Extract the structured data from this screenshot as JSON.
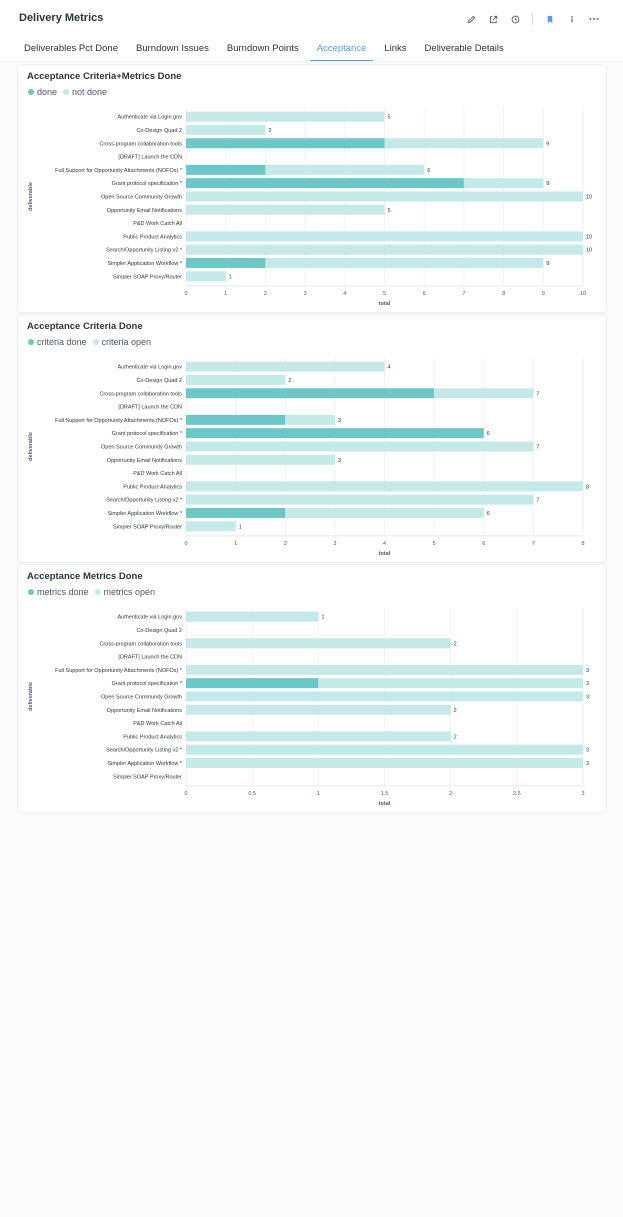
{
  "header": {
    "title": "Delivery Metrics"
  },
  "tabs": [
    {
      "label": "Deliverables Pct Done",
      "active": false
    },
    {
      "label": "Burndown Issues",
      "active": false
    },
    {
      "label": "Burndown Points",
      "active": false
    },
    {
      "label": "Acceptance",
      "active": true
    },
    {
      "label": "Links",
      "active": false
    },
    {
      "label": "Deliverable Details",
      "active": false
    }
  ],
  "colors": {
    "accent": "#509ee3",
    "done": "#6cc7c6",
    "open": "#c5e9e9",
    "grid": "#eceff2"
  },
  "icons": [
    "pencil-icon",
    "share-icon",
    "clock-icon",
    "bookmark-icon",
    "info-icon",
    "more-icon"
  ],
  "cards": [
    {
      "title": "Acceptance Criteria+Metrics Done",
      "legend": [
        "done",
        "not done"
      ]
    },
    {
      "title": "Acceptance Criteria Done",
      "legend": [
        "criteria done",
        "criteria open"
      ]
    },
    {
      "title": "Acceptance Metrics Done",
      "legend": [
        "metrics done",
        "metrics open"
      ]
    }
  ],
  "chart_data": [
    {
      "type": "bar",
      "orientation": "horizontal",
      "stacked": true,
      "title": "Acceptance Criteria+Metrics Done",
      "xlabel": "total",
      "ylabel": "deliverable",
      "xlim": [
        0,
        10
      ],
      "xticks": [
        "0",
        "1",
        "2",
        "3",
        "4",
        "5",
        "6",
        "7",
        "8",
        "9",
        "10"
      ],
      "categories": [
        "Authenticate via Login.gov",
        "Co-Design Quad 2",
        "Cross-program collaboration tools",
        "[DRAFT] Launch the CDN",
        "Full Support for Opportunity Attachments (NOFOs) *",
        "Grant protocol specification *",
        "Open Source Community Growth",
        "Opportunity Email Notifications",
        "P&D Work Catch All",
        "Public Product Analytics",
        "Search/Opportunity Listing v2 *",
        "Simpler Application Workflow *",
        "Simpler SOAP Proxy/Router"
      ],
      "series": [
        {
          "name": "done",
          "values": [
            0,
            0,
            5,
            0,
            2,
            7,
            0,
            0,
            0,
            0,
            0,
            2,
            0
          ]
        },
        {
          "name": "not done",
          "values": [
            5,
            2,
            4,
            0,
            4,
            2,
            10,
            5,
            0,
            10,
            10,
            7,
            1
          ]
        }
      ],
      "totals": [
        "5",
        "2",
        "9",
        "",
        "6",
        "9",
        "10",
        "5",
        "",
        "10",
        "10",
        "9",
        "1"
      ],
      "grid": true,
      "legend_position": "top-left"
    },
    {
      "type": "bar",
      "orientation": "horizontal",
      "stacked": true,
      "title": "Acceptance Criteria Done",
      "xlabel": "total",
      "ylabel": "deliverable",
      "xlim": [
        0,
        8
      ],
      "xticks": [
        "0",
        "1",
        "2",
        "3",
        "4",
        "5",
        "6",
        "7",
        "8"
      ],
      "categories": [
        "Authenticate via Login.gov",
        "Co-Design Quad 2",
        "Cross-program collaboration tools",
        "[DRAFT] Launch the CDN",
        "Full Support for Opportunity Attachments (NOFOs) *",
        "Grant protocol specification *",
        "Open Source Community Growth",
        "Opportunity Email Notifications",
        "P&D Work Catch All",
        "Public Product Analytics",
        "Search/Opportunity Listing v2 *",
        "Simpler Application Workflow *",
        "Simpler SOAP Proxy/Router"
      ],
      "series": [
        {
          "name": "criteria done",
          "values": [
            0,
            0,
            5,
            0,
            2,
            6,
            0,
            0,
            0,
            0,
            0,
            2,
            0
          ]
        },
        {
          "name": "criteria open",
          "values": [
            4,
            2,
            2,
            0,
            1,
            0,
            7,
            3,
            0,
            8,
            7,
            4,
            1
          ]
        }
      ],
      "totals": [
        "4",
        "2",
        "7",
        "",
        "3",
        "6",
        "7",
        "3",
        "",
        "8",
        "7",
        "6",
        "1"
      ],
      "grid": true,
      "legend_position": "top-left"
    },
    {
      "type": "bar",
      "orientation": "horizontal",
      "stacked": true,
      "title": "Acceptance Metrics Done",
      "xlabel": "total",
      "ylabel": "deliverable",
      "xlim": [
        0,
        3
      ],
      "xticks": [
        "0",
        "0.5",
        "1",
        "1.5",
        "2",
        "2.5",
        "3"
      ],
      "categories": [
        "Authenticate via Login.gov",
        "Co-Design Quad 2",
        "Cross-program collaboration tools",
        "[DRAFT] Launch the CDN",
        "Full Support for Opportunity Attachments (NOFOs) *",
        "Grant protocol specification *",
        "Open Source Community Growth",
        "Opportunity Email Notifications",
        "P&D Work Catch All",
        "Public Product Analytics",
        "Search/Opportunity Listing v2 *",
        "Simpler Application Workflow *",
        "Simpler SOAP Proxy/Router"
      ],
      "series": [
        {
          "name": "metrics done",
          "values": [
            0,
            0,
            0,
            0,
            0,
            1,
            0,
            0,
            0,
            0,
            0,
            0,
            0
          ]
        },
        {
          "name": "metrics open",
          "values": [
            1,
            0,
            2,
            0,
            3,
            2,
            3,
            2,
            0,
            2,
            3,
            3,
            0
          ]
        }
      ],
      "totals": [
        "1",
        "",
        "2",
        "",
        "3",
        "3",
        "3",
        "2",
        "",
        "2",
        "3",
        "3",
        ""
      ],
      "grid": true,
      "legend_position": "top-left"
    }
  ]
}
